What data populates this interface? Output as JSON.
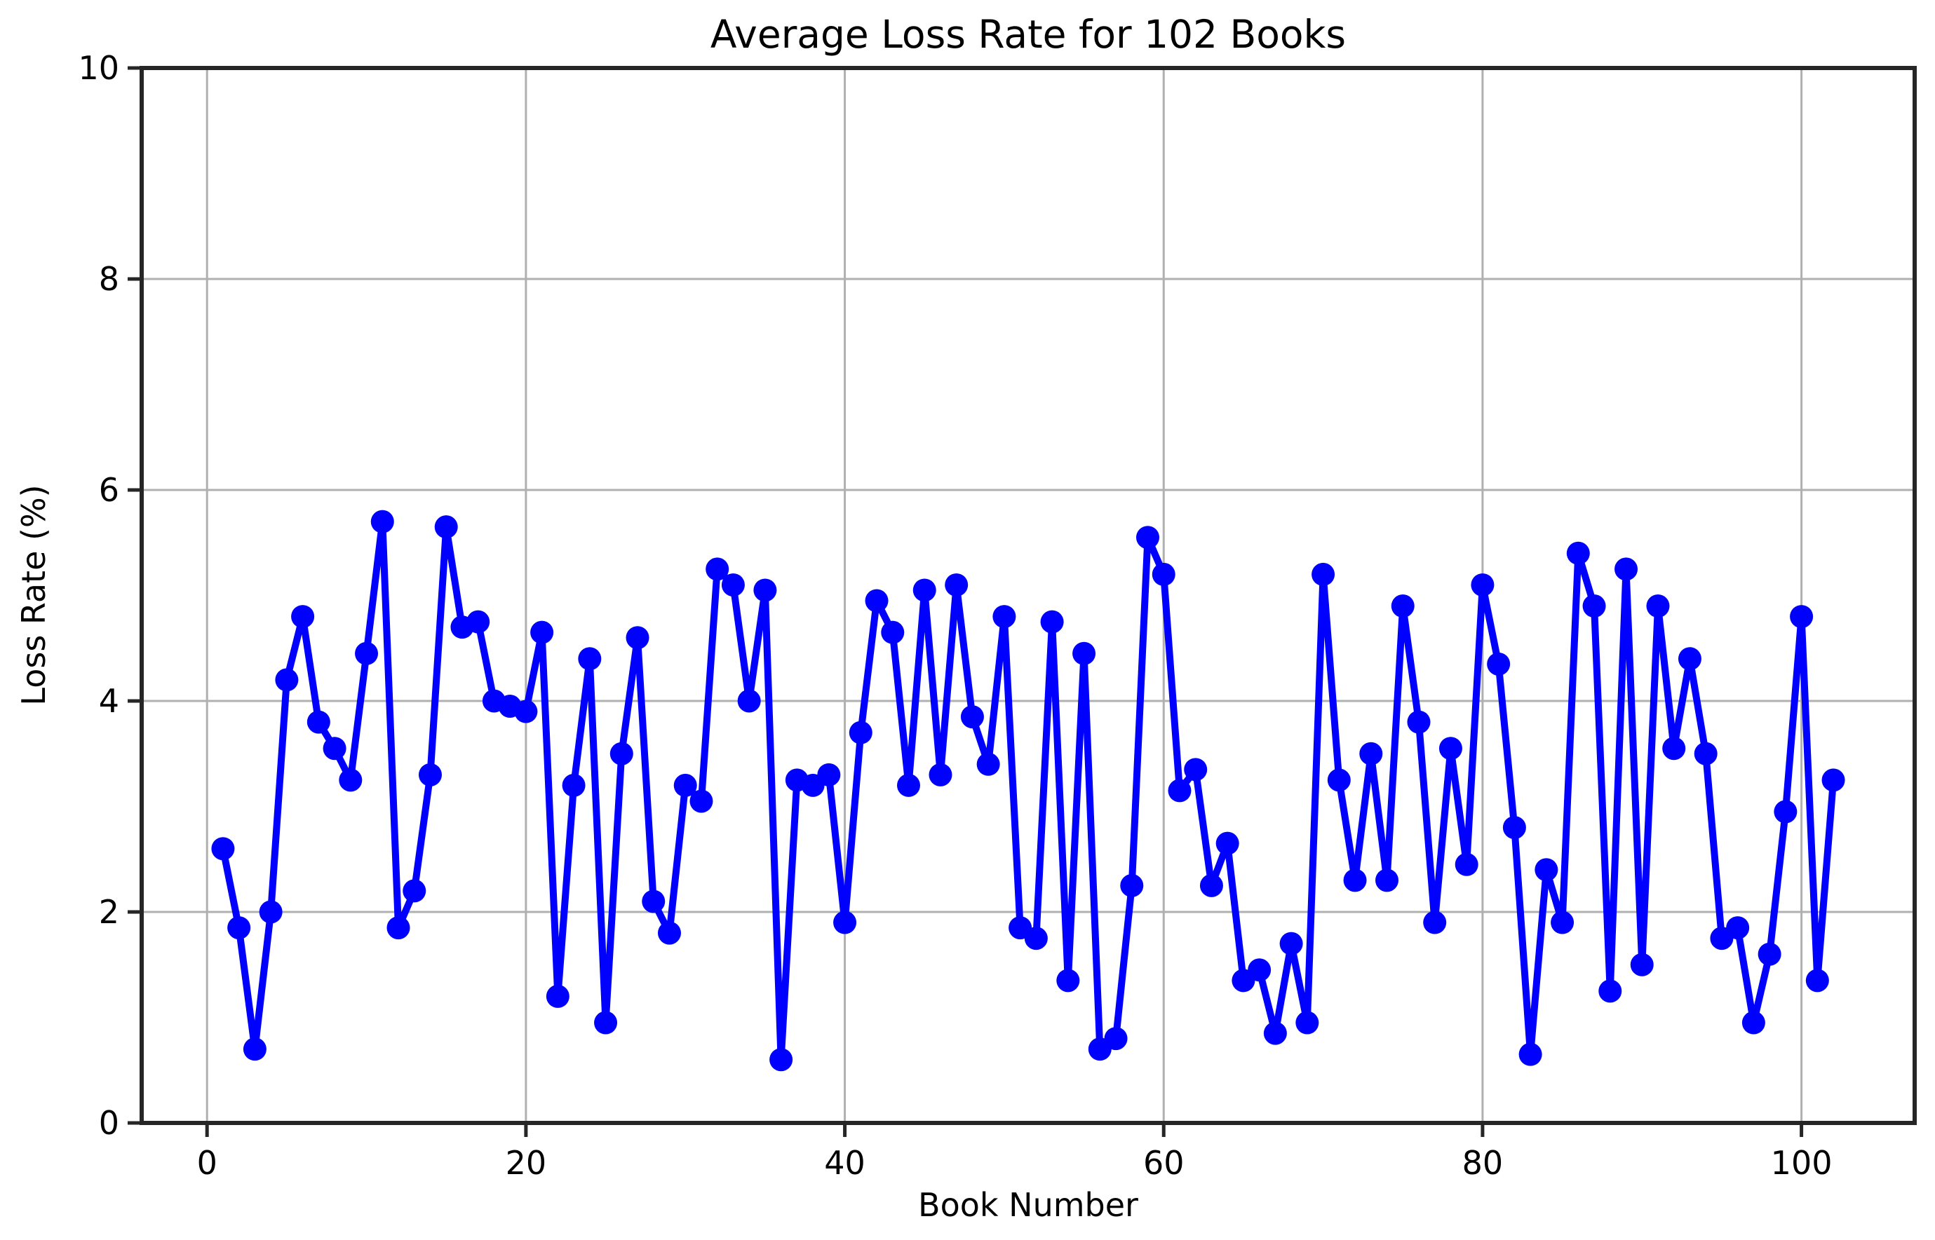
{
  "chart_data": {
    "type": "line",
    "title": "Average Loss Rate for 102 Books",
    "xlabel": "Book Number",
    "ylabel": "Loss Rate (%)",
    "xlim": [
      -4.1,
      107.1
    ],
    "ylim": [
      0,
      10
    ],
    "xticks": [
      0,
      20,
      40,
      60,
      80,
      100
    ],
    "yticks": [
      0,
      2,
      4,
      6,
      8,
      10
    ],
    "grid": true,
    "legend": "none",
    "line_color": "#0000ff",
    "marker": "o",
    "marker_color": "#0000ff",
    "grid_color": "#b0b0b0",
    "spine_color": "#262626",
    "background": "#ffffff",
    "x": [
      1,
      2,
      3,
      4,
      5,
      6,
      7,
      8,
      9,
      10,
      11,
      12,
      13,
      14,
      15,
      16,
      17,
      18,
      19,
      20,
      21,
      22,
      23,
      24,
      25,
      26,
      27,
      28,
      29,
      30,
      31,
      32,
      33,
      34,
      35,
      36,
      37,
      38,
      39,
      40,
      41,
      42,
      43,
      44,
      45,
      46,
      47,
      48,
      49,
      50,
      51,
      52,
      53,
      54,
      55,
      56,
      57,
      58,
      59,
      60,
      61,
      62,
      63,
      64,
      65,
      66,
      67,
      68,
      69,
      70,
      71,
      72,
      73,
      74,
      75,
      76,
      77,
      78,
      79,
      80,
      81,
      82,
      83,
      84,
      85,
      86,
      87,
      88,
      89,
      90,
      91,
      92,
      93,
      94,
      95,
      96,
      97,
      98,
      99,
      100,
      101,
      102
    ],
    "values": [
      2.6,
      1.85,
      0.7,
      2.0,
      4.2,
      4.8,
      3.8,
      3.55,
      3.25,
      4.45,
      5.7,
      1.85,
      2.2,
      3.3,
      5.65,
      4.7,
      4.75,
      4.0,
      3.95,
      3.9,
      4.65,
      1.2,
      3.2,
      4.4,
      0.95,
      3.5,
      4.6,
      2.1,
      1.8,
      3.2,
      3.05,
      5.25,
      5.1,
      4.0,
      5.05,
      0.6,
      3.25,
      3.2,
      3.3,
      1.9,
      3.7,
      4.95,
      4.65,
      3.2,
      5.05,
      3.3,
      5.1,
      3.85,
      3.4,
      4.8,
      1.85,
      1.75,
      4.75,
      1.35,
      4.45,
      0.7,
      0.8,
      2.25,
      5.55,
      5.2,
      3.15,
      3.35,
      2.25,
      2.65,
      1.35,
      1.45,
      0.85,
      1.7,
      0.95,
      5.2,
      3.25,
      2.3,
      3.5,
      2.3,
      4.9,
      3.8,
      1.9,
      3.55,
      2.45,
      5.1,
      4.35,
      2.8,
      0.65,
      2.4,
      1.9,
      5.4,
      4.9,
      1.25,
      5.25,
      1.5,
      4.9,
      3.55,
      4.4,
      3.5,
      1.75,
      1.85,
      0.95,
      1.6,
      2.95,
      4.8,
      1.35,
      3.25
    ]
  }
}
